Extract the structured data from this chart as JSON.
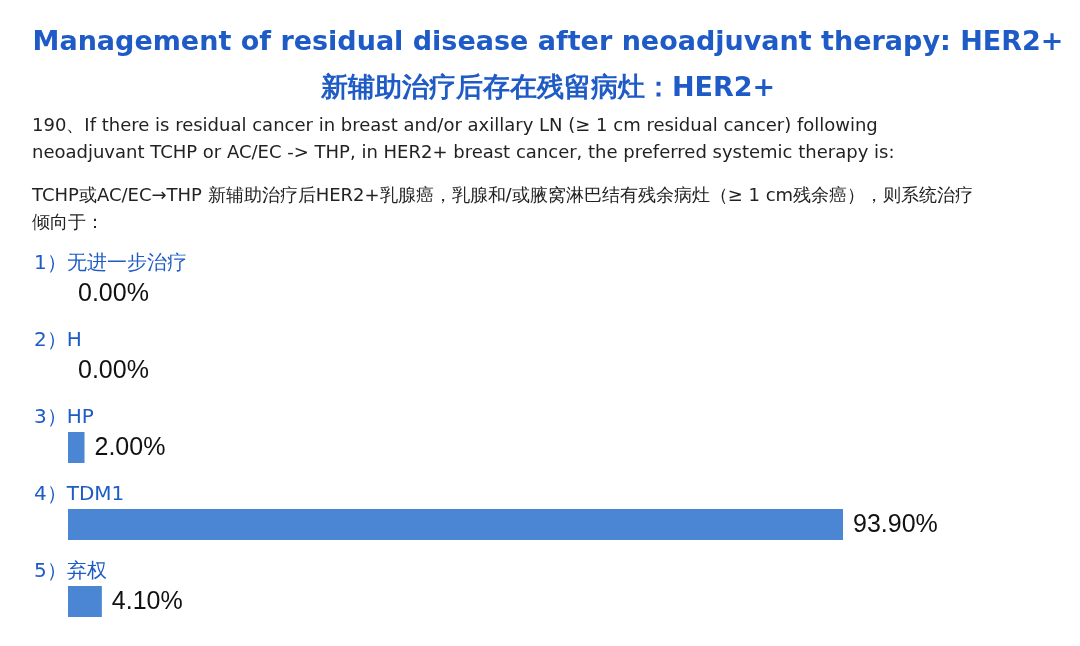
{
  "chart_data": {
    "type": "bar",
    "orientation": "horizontal",
    "title": "Management of residual disease after neoadjuvant therapy: HER2+",
    "subtitle": "新辅助治疗后存在残留病灶：HER2+",
    "annotations": [
      "190、If there is residual cancer in breast and/or axillary LN (≥ 1 cm residual cancer) following neoadjuvant TCHP or AC/EC -> THP, in HER2+ breast cancer, the preferred systemic therapy is:",
      "TCHP或AC/EC→THP 新辅助治疗后HER2+乳腺癌，乳腺和/或腋窝淋巴结有残余病灶（≥ 1 cm残余癌），则系统治疗倾向于："
    ],
    "categories": [
      "1）无进一步治疗",
      "2）H",
      "3）HP",
      "4）TDM1",
      "5）弃权"
    ],
    "values": [
      0,
      0,
      2,
      93.9,
      4.1
    ],
    "value_labels": [
      "0.00%",
      "0.00%",
      "2.00%",
      "93.90%",
      "4.10%"
    ],
    "color": "#4a86d4"
  }
}
